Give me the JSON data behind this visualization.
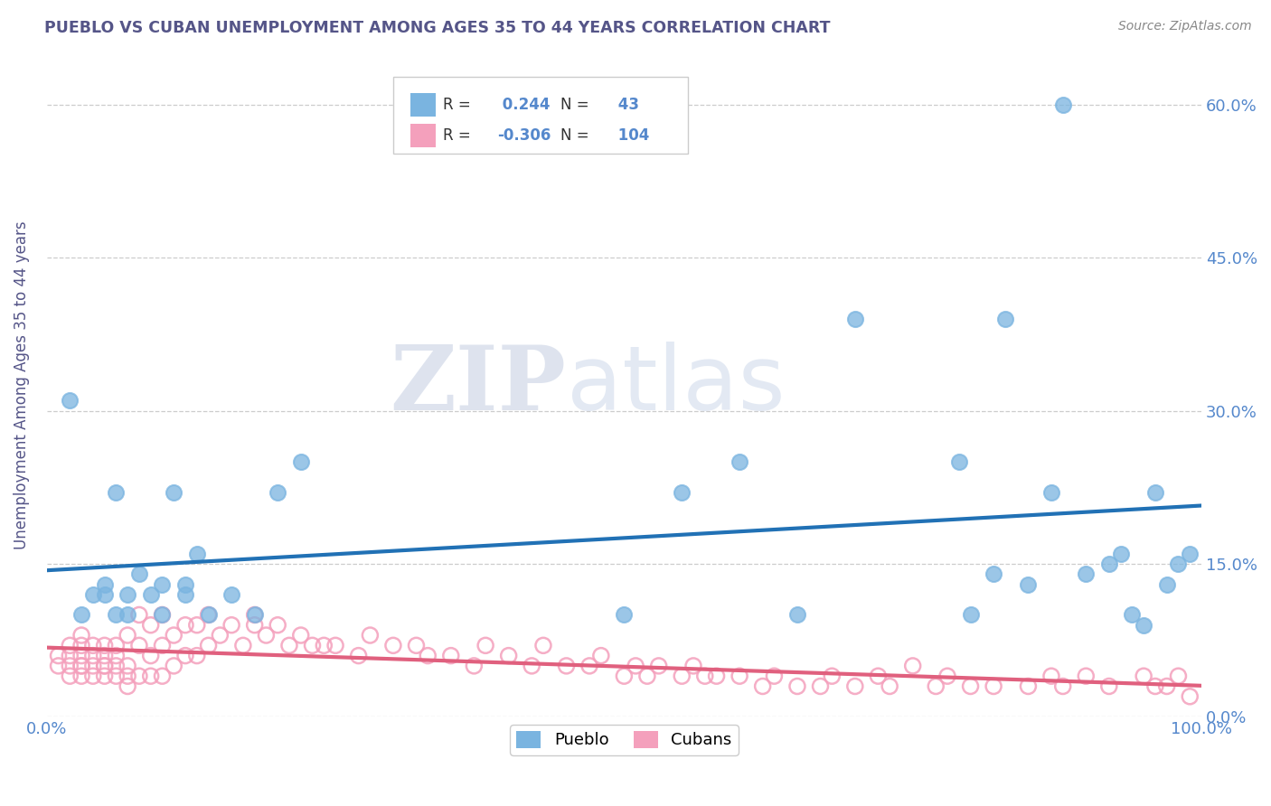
{
  "title": "PUEBLO VS CUBAN UNEMPLOYMENT AMONG AGES 35 TO 44 YEARS CORRELATION CHART",
  "source": "Source: ZipAtlas.com",
  "ylabel": "Unemployment Among Ages 35 to 44 years",
  "xlim": [
    0,
    1.0
  ],
  "ylim": [
    0,
    0.65
  ],
  "yticks": [
    0.0,
    0.15,
    0.3,
    0.45,
    0.6
  ],
  "ytick_labels": [
    "0.0%",
    "15.0%",
    "30.0%",
    "45.0%",
    "60.0%"
  ],
  "xticks": [
    0.0,
    1.0
  ],
  "xtick_labels": [
    "0.0%",
    "100.0%"
  ],
  "pueblo_R": 0.244,
  "pueblo_N": 43,
  "cuban_R": -0.306,
  "cuban_N": 104,
  "pueblo_color": "#7ab4e0",
  "cuban_color": "#f4a0bc",
  "pueblo_line_color": "#2171b5",
  "cuban_line_color": "#e0607e",
  "background_color": "#ffffff",
  "grid_color": "#cccccc",
  "watermark_zip": "ZIP",
  "watermark_atlas": "atlas",
  "title_color": "#555588",
  "axis_label_color": "#555588",
  "tick_color": "#5588cc",
  "pueblo_x": [
    0.02,
    0.03,
    0.04,
    0.05,
    0.05,
    0.06,
    0.06,
    0.07,
    0.07,
    0.08,
    0.09,
    0.1,
    0.1,
    0.11,
    0.12,
    0.12,
    0.13,
    0.14,
    0.16,
    0.18,
    0.2,
    0.22,
    0.5,
    0.55,
    0.6,
    0.65,
    0.7,
    0.8,
    0.82,
    0.85,
    0.87,
    0.9,
    0.92,
    0.93,
    0.94,
    0.95,
    0.96,
    0.97,
    0.98,
    0.99,
    0.79,
    0.83,
    0.88
  ],
  "pueblo_y": [
    0.31,
    0.1,
    0.12,
    0.12,
    0.13,
    0.22,
    0.1,
    0.12,
    0.1,
    0.14,
    0.12,
    0.13,
    0.1,
    0.22,
    0.13,
    0.12,
    0.16,
    0.1,
    0.12,
    0.1,
    0.22,
    0.25,
    0.1,
    0.22,
    0.25,
    0.1,
    0.39,
    0.1,
    0.14,
    0.13,
    0.22,
    0.14,
    0.15,
    0.16,
    0.1,
    0.09,
    0.22,
    0.13,
    0.15,
    0.16,
    0.25,
    0.39,
    0.6
  ],
  "cuban_x": [
    0.01,
    0.01,
    0.02,
    0.02,
    0.02,
    0.02,
    0.03,
    0.03,
    0.03,
    0.03,
    0.03,
    0.03,
    0.04,
    0.04,
    0.04,
    0.04,
    0.05,
    0.05,
    0.05,
    0.05,
    0.05,
    0.06,
    0.06,
    0.06,
    0.06,
    0.07,
    0.07,
    0.07,
    0.07,
    0.08,
    0.08,
    0.08,
    0.09,
    0.09,
    0.09,
    0.1,
    0.1,
    0.1,
    0.11,
    0.11,
    0.12,
    0.12,
    0.13,
    0.13,
    0.14,
    0.14,
    0.15,
    0.16,
    0.17,
    0.18,
    0.18,
    0.19,
    0.2,
    0.21,
    0.22,
    0.23,
    0.24,
    0.25,
    0.27,
    0.28,
    0.3,
    0.32,
    0.33,
    0.35,
    0.37,
    0.38,
    0.4,
    0.42,
    0.43,
    0.45,
    0.47,
    0.48,
    0.5,
    0.51,
    0.52,
    0.53,
    0.55,
    0.56,
    0.57,
    0.58,
    0.6,
    0.62,
    0.63,
    0.65,
    0.67,
    0.68,
    0.7,
    0.72,
    0.73,
    0.75,
    0.77,
    0.78,
    0.8,
    0.82,
    0.85,
    0.87,
    0.88,
    0.9,
    0.92,
    0.95,
    0.96,
    0.97,
    0.98,
    0.99
  ],
  "cuban_y": [
    0.05,
    0.06,
    0.04,
    0.05,
    0.06,
    0.07,
    0.04,
    0.05,
    0.05,
    0.06,
    0.07,
    0.08,
    0.04,
    0.05,
    0.06,
    0.07,
    0.04,
    0.05,
    0.05,
    0.06,
    0.07,
    0.04,
    0.05,
    0.06,
    0.07,
    0.03,
    0.04,
    0.05,
    0.08,
    0.04,
    0.07,
    0.1,
    0.04,
    0.06,
    0.09,
    0.04,
    0.07,
    0.1,
    0.05,
    0.08,
    0.06,
    0.09,
    0.06,
    0.09,
    0.07,
    0.1,
    0.08,
    0.09,
    0.07,
    0.09,
    0.1,
    0.08,
    0.09,
    0.07,
    0.08,
    0.07,
    0.07,
    0.07,
    0.06,
    0.08,
    0.07,
    0.07,
    0.06,
    0.06,
    0.05,
    0.07,
    0.06,
    0.05,
    0.07,
    0.05,
    0.05,
    0.06,
    0.04,
    0.05,
    0.04,
    0.05,
    0.04,
    0.05,
    0.04,
    0.04,
    0.04,
    0.03,
    0.04,
    0.03,
    0.03,
    0.04,
    0.03,
    0.04,
    0.03,
    0.05,
    0.03,
    0.04,
    0.03,
    0.03,
    0.03,
    0.04,
    0.03,
    0.04,
    0.03,
    0.04,
    0.03,
    0.03,
    0.04,
    0.02
  ]
}
